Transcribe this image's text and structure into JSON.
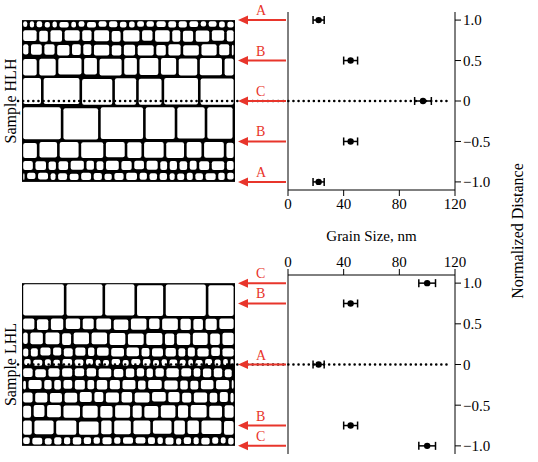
{
  "chart_data": [
    {
      "type": "scatter",
      "title": "Sample HLH",
      "x": [
        22,
        45,
        97,
        45,
        22
      ],
      "y": [
        1,
        0.5,
        0,
        -0.5,
        -1
      ],
      "x_error": [
        4,
        5,
        6,
        5,
        4
      ],
      "labels": [
        "A",
        "B",
        "C",
        "B",
        "A"
      ],
      "xlim": [
        0,
        120
      ],
      "xticks": [
        0,
        40,
        80,
        120
      ],
      "ylim": [
        -1.1,
        1.1
      ],
      "yticks": [
        {
          "value": 1,
          "label": "1.0"
        },
        {
          "value": 0.5,
          "label": "0.5"
        },
        0,
        {
          "value": -0.5,
          "label": "−0.5"
        },
        {
          "value": -1,
          "label": "−1.0"
        }
      ],
      "xlabel": "Grain Size, nm",
      "ylabel": "Normalized Distance",
      "color": "#000000",
      "marker": "circle"
    },
    {
      "type": "scatter",
      "title": "Sample LHL",
      "x": [
        100,
        45,
        22,
        45,
        100
      ],
      "y": [
        1,
        0.75,
        0,
        -0.75,
        -1
      ],
      "x_error": [
        6,
        5,
        4,
        5,
        6
      ],
      "labels": [
        "C",
        "B",
        "A",
        "B",
        "C"
      ],
      "xlim": [
        0,
        120
      ],
      "xticks": [
        0,
        40,
        80,
        120
      ],
      "ylim": [
        -1.1,
        1.1
      ],
      "yticks": [
        {
          "value": 1,
          "label": "1.0"
        },
        {
          "value": 0.5,
          "label": "0.5"
        },
        0,
        {
          "value": -0.5,
          "label": "−0.5"
        },
        {
          "value": -1,
          "label": "−1.0"
        }
      ],
      "color": "#000000",
      "marker": "circle"
    }
  ]
}
